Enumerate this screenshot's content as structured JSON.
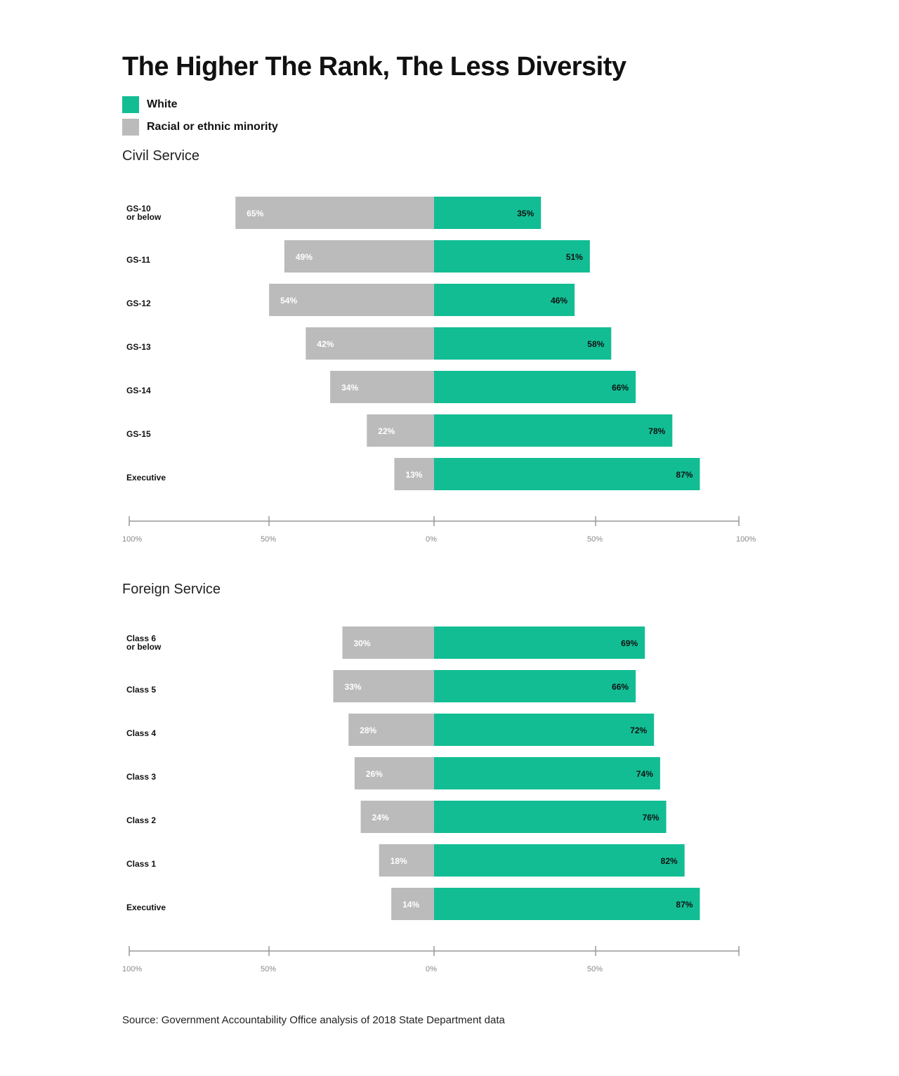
{
  "title": "The Higher The Rank, The Less Diversity",
  "legend": {
    "white": {
      "label": "White",
      "color": "#12BD94"
    },
    "minority": {
      "label": "Racial or ethnic minority",
      "color": "#BBBBBB"
    }
  },
  "colors": {
    "white_bar": "#12BD94",
    "minority_bar": "#BBBBBB",
    "white_label": "#111111",
    "minority_label": "#FFFFFF",
    "axis": "#999999",
    "tick_label": "#888888"
  },
  "chart_data": [
    {
      "type": "bar",
      "orientation": "horizontal-diverging",
      "title": "Civil Service",
      "categories": [
        "GS-10\nor below",
        "GS-11",
        "GS-12",
        "GS-13",
        "GS-14",
        "GS-15",
        "Executive"
      ],
      "series": [
        {
          "name": "Racial or ethnic minority",
          "side": "left",
          "values": [
            65,
            49,
            54,
            42,
            34,
            22,
            13
          ]
        },
        {
          "name": "White",
          "side": "right",
          "values": [
            35,
            51,
            46,
            58,
            66,
            78,
            87
          ]
        }
      ],
      "axis_ticks": [
        "100%",
        "50%",
        "0%",
        "50%",
        "100%"
      ],
      "xlim": [
        -100,
        100
      ],
      "grid": false
    },
    {
      "type": "bar",
      "orientation": "horizontal-diverging",
      "title": "Foreign Service",
      "categories": [
        "Class 6\nor below",
        "Class 5",
        "Class 4",
        "Class 3",
        "Class 2",
        "Class 1",
        "Executive"
      ],
      "series": [
        {
          "name": "Racial or ethnic minority",
          "side": "left",
          "values": [
            30,
            33,
            28,
            26,
            24,
            18,
            14
          ]
        },
        {
          "name": "White",
          "side": "right",
          "values": [
            69,
            66,
            72,
            74,
            76,
            82,
            87
          ]
        }
      ],
      "axis_ticks": [
        "100%",
        "50%",
        "0%",
        "50%",
        ""
      ],
      "xlim": [
        -100,
        100
      ],
      "grid": false
    }
  ],
  "source": {
    "label": "Source:",
    "text": "Government Accountability Office analysis of 2018 State Department data"
  }
}
